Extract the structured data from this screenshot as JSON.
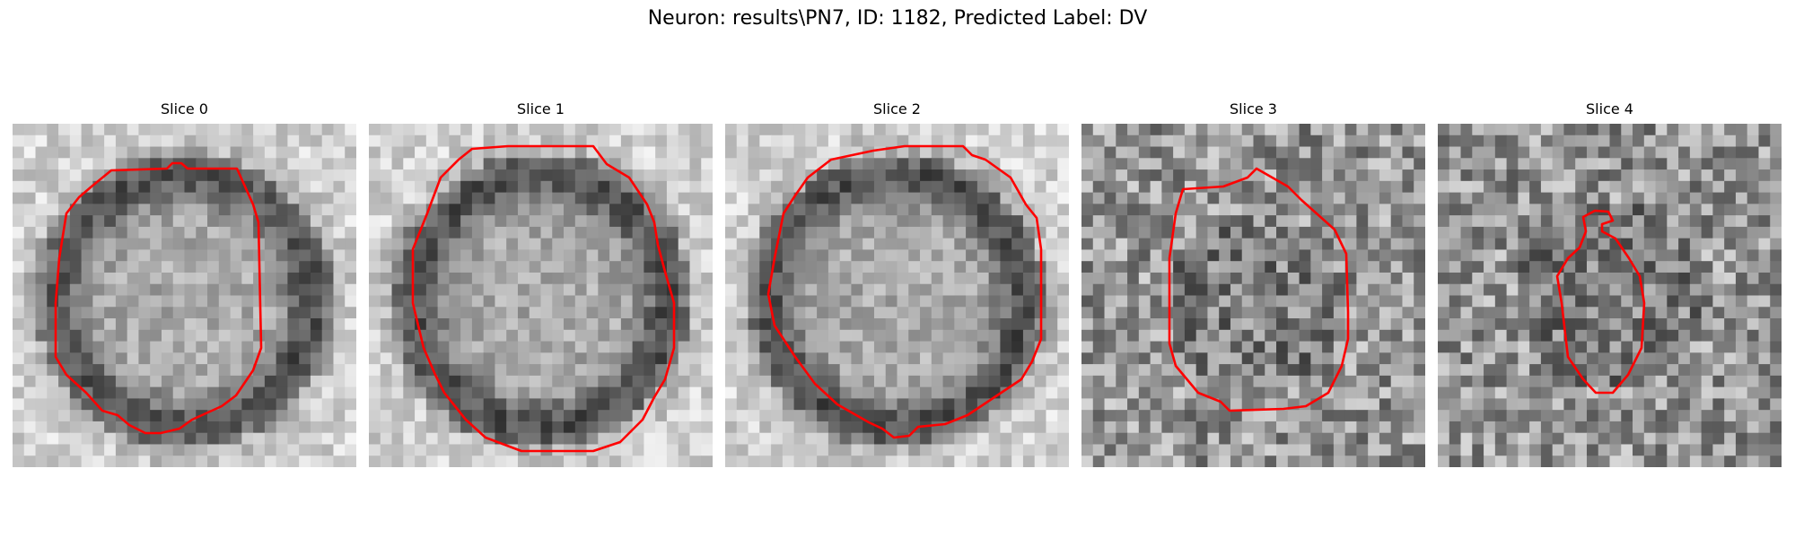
{
  "figure": {
    "suptitle": "Neuron: results\\PN7, ID: 1182, Predicted Label: DV",
    "contour_color": "#ff0000",
    "panels": [
      {
        "title": "Slice 0",
        "membrane": "ring",
        "seed": 11
      },
      {
        "title": "Slice 1",
        "membrane": "ring",
        "seed": 23
      },
      {
        "title": "Slice 2",
        "membrane": "ring",
        "seed": 37
      },
      {
        "title": "Slice 3",
        "membrane": "noisy",
        "seed": 41
      },
      {
        "title": "Slice 4",
        "membrane": "noisy",
        "seed": 59
      }
    ]
  }
}
